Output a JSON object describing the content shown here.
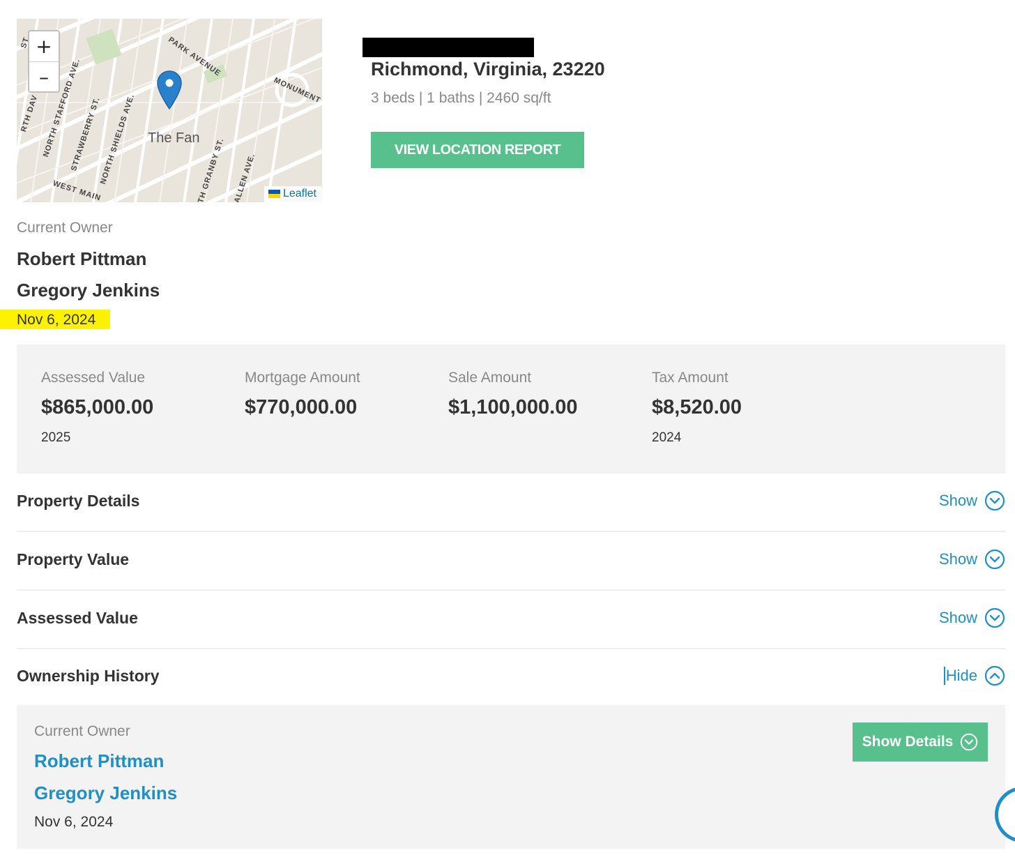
{
  "map": {
    "zoom_in": "+",
    "zoom_out": "–",
    "attribution": "Leaflet",
    "neighborhood": "The Fan",
    "streets": [
      "PARK AVENUE",
      "NORTH STAFFORD AVE.",
      "STRAWBERRY ST.",
      "NORTH SHIELDS AVE.",
      "WEST MAIN",
      "ALLEN AVE.",
      "TH GRANBY ST.",
      "MONUMENT AVENUE",
      "RTH DAV",
      "ST."
    ]
  },
  "property": {
    "address": "Richmond, Virginia, 23220",
    "specs": "3 beds | 1 baths | 2460 sq/ft",
    "report_button": "VIEW LOCATION REPORT"
  },
  "owner": {
    "label": "Current Owner",
    "names": [
      "Robert Pittman",
      "Gregory Jenkins"
    ],
    "date": "Nov 6, 2024",
    "highlight_color": "#fff200"
  },
  "values": [
    {
      "label": "Assessed Value",
      "amount": "$865,000.00",
      "year": "2025"
    },
    {
      "label": "Mortgage Amount",
      "amount": "$770,000.00",
      "year": ""
    },
    {
      "label": "Sale Amount",
      "amount": "$1,100,000.00",
      "year": ""
    },
    {
      "label": "Tax Amount",
      "amount": "$8,520.00",
      "year": "2024"
    }
  ],
  "sections": [
    {
      "title": "Property Details",
      "toggle": "Show",
      "icon": "chevron-down-circle-icon"
    },
    {
      "title": "Property Value",
      "toggle": "Show",
      "icon": "chevron-down-circle-icon"
    },
    {
      "title": "Assessed Value",
      "toggle": "Show",
      "icon": "chevron-down-circle-icon"
    },
    {
      "title": "Ownership History",
      "toggle": "Hide",
      "icon": "chevron-up-circle-icon"
    }
  ],
  "history": {
    "label": "Current Owner",
    "names": [
      "Robert Pittman",
      "Gregory Jenkins"
    ],
    "date": "Nov 6, 2024",
    "details_button": "Show Details"
  },
  "colors": {
    "accent_green": "#57c08c",
    "link_blue": "#1e90c6",
    "panel_gray": "#f3f3f3"
  }
}
